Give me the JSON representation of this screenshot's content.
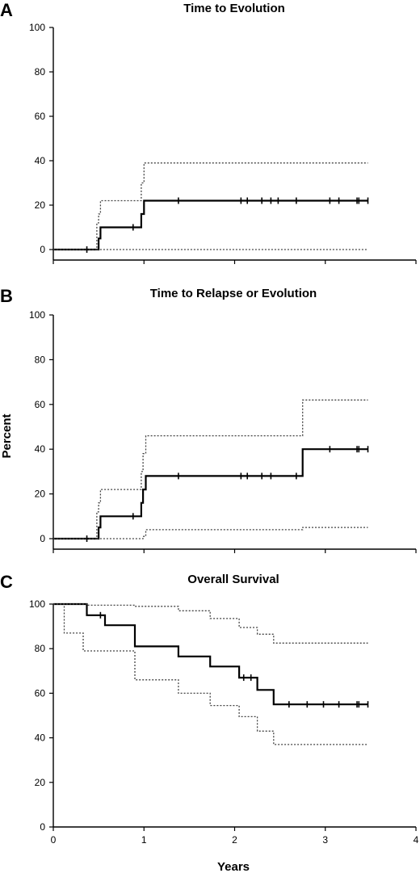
{
  "figure": {
    "ylabel": "Percent",
    "xlabel": "Years"
  },
  "chart_data": [
    {
      "type": "line",
      "panel": "A",
      "title": "Time to Evolution",
      "ylim": [
        0,
        100
      ],
      "yticks": [
        "0",
        "20",
        "40",
        "60",
        "80",
        "100"
      ],
      "xlim": [
        0,
        4
      ],
      "show_x_tick_labels": false,
      "series": [
        {
          "role": "estimate",
          "points": [
            [
              0,
              0
            ],
            [
              0.5,
              0
            ],
            [
              0.5,
              5
            ],
            [
              0.52,
              5
            ],
            [
              0.52,
              10
            ],
            [
              0.97,
              10
            ],
            [
              0.97,
              16
            ],
            [
              1.0,
              16
            ],
            [
              1.0,
              22
            ],
            [
              3.47,
              22
            ]
          ]
        },
        {
          "role": "ci_upper",
          "points": [
            [
              0,
              0
            ],
            [
              0.48,
              0
            ],
            [
              0.48,
              12
            ],
            [
              0.5,
              12
            ],
            [
              0.5,
              16
            ],
            [
              0.52,
              16
            ],
            [
              0.52,
              22
            ],
            [
              0.97,
              22
            ],
            [
              0.97,
              30
            ],
            [
              1.0,
              30
            ],
            [
              1.0,
              39
            ],
            [
              3.47,
              39
            ]
          ]
        },
        {
          "role": "ci_lower",
          "points": [
            [
              0.48,
              0
            ],
            [
              3.47,
              0
            ]
          ]
        }
      ],
      "censored": [
        0.37,
        0.88,
        1.38,
        2.07,
        2.14,
        2.3,
        2.4,
        2.48,
        2.68,
        3.05,
        3.15,
        3.35,
        3.37,
        3.47
      ]
    },
    {
      "type": "line",
      "panel": "B",
      "title": "Time to Relapse or Evolution",
      "ylim": [
        0,
        100
      ],
      "yticks": [
        "0",
        "20",
        "40",
        "60",
        "80",
        "100"
      ],
      "xlim": [
        0,
        4
      ],
      "show_x_tick_labels": false,
      "series": [
        {
          "role": "estimate",
          "points": [
            [
              0,
              0
            ],
            [
              0.5,
              0
            ],
            [
              0.5,
              5
            ],
            [
              0.52,
              5
            ],
            [
              0.52,
              10
            ],
            [
              0.97,
              10
            ],
            [
              0.97,
              16
            ],
            [
              0.99,
              16
            ],
            [
              0.99,
              22
            ],
            [
              1.02,
              22
            ],
            [
              1.02,
              28
            ],
            [
              2.75,
              28
            ],
            [
              2.75,
              40
            ],
            [
              3.47,
              40
            ]
          ]
        },
        {
          "role": "ci_upper",
          "points": [
            [
              0,
              0
            ],
            [
              0.48,
              0
            ],
            [
              0.48,
              12
            ],
            [
              0.5,
              12
            ],
            [
              0.5,
              16
            ],
            [
              0.52,
              16
            ],
            [
              0.52,
              22
            ],
            [
              0.97,
              22
            ],
            [
              0.97,
              30
            ],
            [
              0.99,
              30
            ],
            [
              0.99,
              38
            ],
            [
              1.02,
              38
            ],
            [
              1.02,
              46
            ],
            [
              2.75,
              46
            ],
            [
              2.75,
              62
            ],
            [
              3.47,
              62
            ]
          ]
        },
        {
          "role": "ci_lower",
          "points": [
            [
              0.48,
              0
            ],
            [
              0.99,
              0
            ],
            [
              0.99,
              1
            ],
            [
              1.02,
              1
            ],
            [
              1.02,
              4
            ],
            [
              2.75,
              4
            ],
            [
              2.75,
              5
            ],
            [
              3.47,
              5
            ]
          ]
        }
      ],
      "censored": [
        0.37,
        0.88,
        1.38,
        2.07,
        2.14,
        2.3,
        2.4,
        2.68,
        3.05,
        3.35,
        3.37,
        3.47
      ]
    },
    {
      "type": "line",
      "panel": "C",
      "title": "Overall Survival",
      "ylim": [
        0,
        100
      ],
      "yticks": [
        "0",
        "20",
        "40",
        "60",
        "80",
        "100"
      ],
      "xlim": [
        0,
        4
      ],
      "xticks": [
        "0",
        "1",
        "2",
        "3",
        "4"
      ],
      "show_x_tick_labels": true,
      "series": [
        {
          "role": "estimate",
          "points": [
            [
              0,
              100
            ],
            [
              0.37,
              100
            ],
            [
              0.37,
              95
            ],
            [
              0.57,
              95
            ],
            [
              0.57,
              90.5
            ],
            [
              0.9,
              90.5
            ],
            [
              0.9,
              81
            ],
            [
              1.38,
              81
            ],
            [
              1.38,
              76.5
            ],
            [
              1.73,
              76.5
            ],
            [
              1.73,
              72
            ],
            [
              2.05,
              72
            ],
            [
              2.05,
              67
            ],
            [
              2.25,
              67
            ],
            [
              2.25,
              61.5
            ],
            [
              2.43,
              61.5
            ],
            [
              2.43,
              55
            ],
            [
              3.47,
              55
            ]
          ]
        },
        {
          "role": "ci_upper",
          "points": [
            [
              0,
              100
            ],
            [
              0.37,
              100
            ],
            [
              0.37,
              99.5
            ],
            [
              0.9,
              99.5
            ],
            [
              0.9,
              99
            ],
            [
              1.38,
              99
            ],
            [
              1.38,
              97
            ],
            [
              1.73,
              97
            ],
            [
              1.73,
              93.5
            ],
            [
              2.05,
              93.5
            ],
            [
              2.05,
              89.5
            ],
            [
              2.25,
              89.5
            ],
            [
              2.25,
              86.5
            ],
            [
              2.43,
              86.5
            ],
            [
              2.43,
              82.5
            ],
            [
              3.47,
              82.5
            ]
          ]
        },
        {
          "role": "ci_lower",
          "points": [
            [
              0,
              100
            ],
            [
              0.12,
              100
            ],
            [
              0.12,
              87
            ],
            [
              0.33,
              87
            ],
            [
              0.33,
              79
            ],
            [
              0.9,
              79
            ],
            [
              0.9,
              66
            ],
            [
              1.38,
              66
            ],
            [
              1.38,
              60
            ],
            [
              1.73,
              60
            ],
            [
              1.73,
              54.5
            ],
            [
              2.05,
              54.5
            ],
            [
              2.05,
              49.5
            ],
            [
              2.25,
              49.5
            ],
            [
              2.25,
              43
            ],
            [
              2.43,
              43
            ],
            [
              2.43,
              37
            ],
            [
              3.47,
              37
            ]
          ]
        }
      ],
      "censored": [
        0.52,
        2.1,
        2.18,
        2.6,
        2.8,
        2.98,
        3.15,
        3.35,
        3.37,
        3.47
      ]
    }
  ]
}
